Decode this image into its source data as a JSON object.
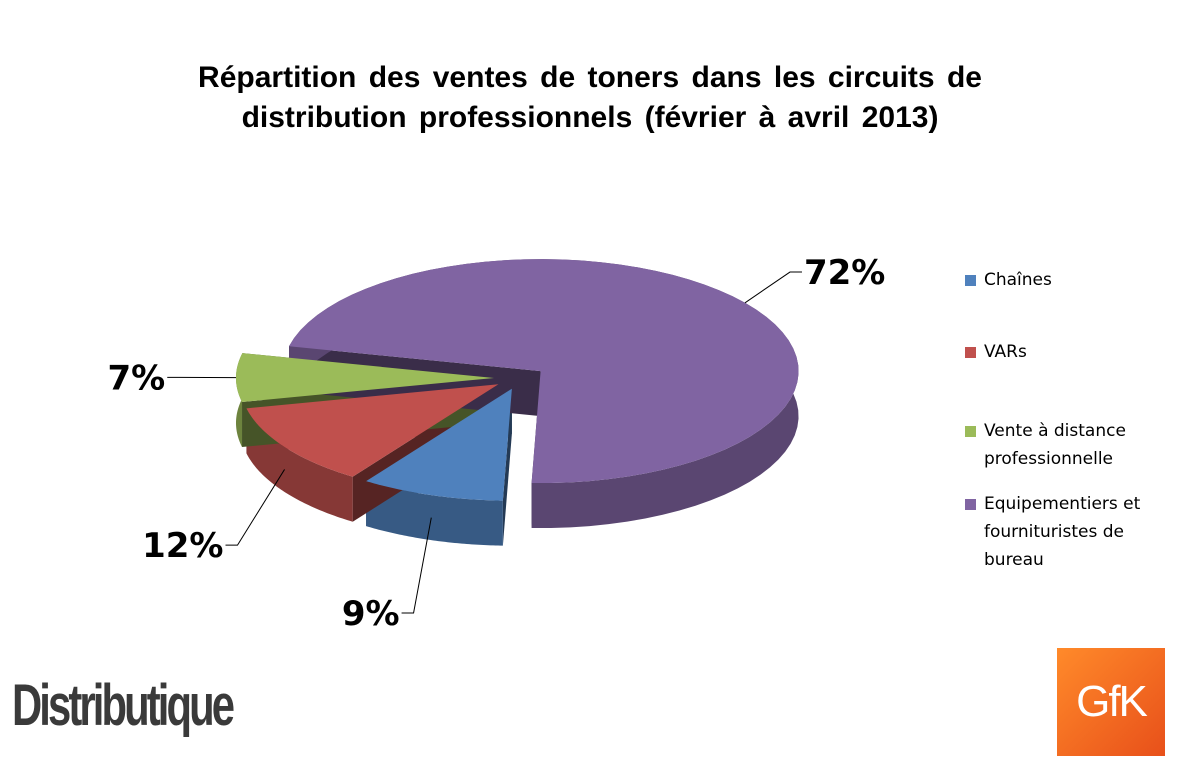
{
  "chart_data": {
    "type": "pie",
    "title": "Répartition des ventes de toners dans les circuits de distribution professionnels (février à avril 2013)",
    "categories": [
      "Chaînes",
      "VARs",
      "Vente à distance professionnelle",
      "Equipementiers et fournituristes de bureau"
    ],
    "values": [
      9,
      12,
      7,
      72
    ],
    "value_labels": [
      "9%",
      "12%",
      "7%",
      "72%"
    ],
    "colors": [
      "#4f81bd",
      "#c0504d",
      "#9bbb59",
      "#8064a2"
    ],
    "legend": "right"
  },
  "logos": {
    "left": "Distributique",
    "right": "GfK"
  }
}
